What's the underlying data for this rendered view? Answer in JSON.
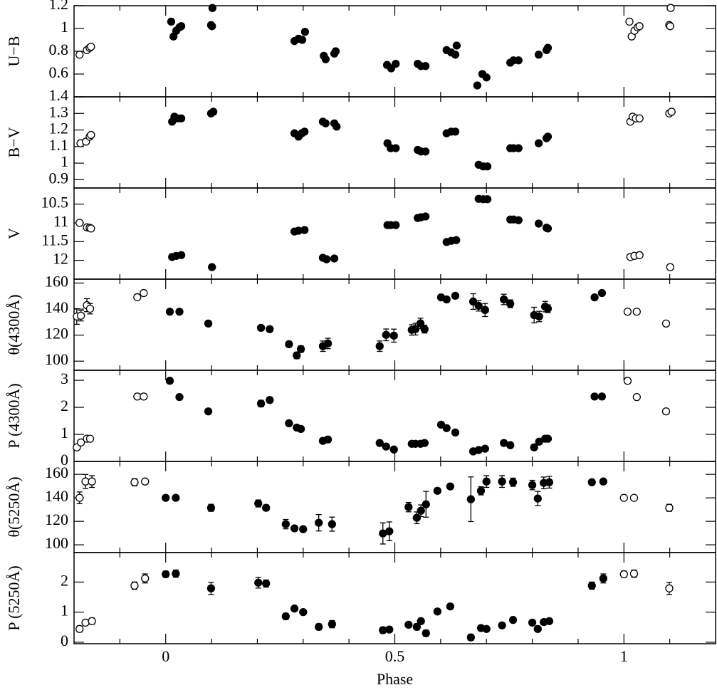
{
  "chart_data": [
    {
      "type": "scatter",
      "ylabel": "U−B",
      "xlim": [
        -0.2,
        1.2
      ],
      "xticks": [
        0,
        0.5,
        1
      ],
      "xminorticks": [
        -0.1,
        0.1,
        0.2,
        0.3,
        0.4,
        0.6,
        0.7,
        0.8,
        0.9,
        1.1
      ],
      "ylim": [
        0.4,
        1.2
      ],
      "yticks": [
        0.6,
        0.8,
        1,
        1.2
      ],
      "series": [
        {
          "marker": "filled",
          "x": [
            0.012,
            0.017,
            0.023,
            0.03,
            0.034,
            0.099,
            0.101,
            0.102,
            0.281,
            0.29,
            0.298,
            0.304,
            0.345,
            0.349,
            0.368,
            0.371,
            0.483,
            0.492,
            0.502,
            0.55,
            0.557,
            0.567,
            0.613,
            0.623,
            0.632,
            0.635,
            0.68,
            0.691,
            0.7,
            0.752,
            0.759,
            0.77,
            0.814,
            0.831,
            0.834
          ],
          "values": [
            1.06,
            0.93,
            0.98,
            1.01,
            1.02,
            1.03,
            1.02,
            1.18,
            0.89,
            0.91,
            0.9,
            0.97,
            0.76,
            0.73,
            0.78,
            0.8,
            0.68,
            0.65,
            0.69,
            0.69,
            0.67,
            0.67,
            0.81,
            0.79,
            0.77,
            0.85,
            0.5,
            0.6,
            0.57,
            0.7,
            0.72,
            0.72,
            0.77,
            0.81,
            0.83
          ]
        },
        {
          "marker": "open",
          "x": [
            -0.188,
            -0.172,
            -0.166,
            -0.163,
            1.012,
            1.017,
            1.023,
            1.03,
            1.034,
            1.099,
            1.101,
            1.102
          ],
          "values": [
            0.77,
            0.81,
            0.83,
            0.84,
            1.06,
            0.93,
            0.98,
            1.01,
            1.02,
            1.03,
            1.02,
            1.18
          ]
        }
      ]
    },
    {
      "type": "scatter",
      "ylabel": "B−V",
      "xlim": [
        -0.2,
        1.2
      ],
      "xticks": [
        0,
        0.5,
        1
      ],
      "xminorticks": [
        -0.1,
        0.1,
        0.2,
        0.3,
        0.4,
        0.6,
        0.7,
        0.8,
        0.9,
        1.1
      ],
      "ylim": [
        0.85,
        1.4
      ],
      "yticks": [
        0.9,
        1,
        1.1,
        1.2,
        1.3,
        1.4
      ],
      "series": [
        {
          "marker": "filled",
          "x": [
            0.014,
            0.019,
            0.026,
            0.034,
            0.099,
            0.104,
            0.281,
            0.29,
            0.297,
            0.303,
            0.343,
            0.349,
            0.368,
            0.373,
            0.484,
            0.491,
            0.502,
            0.55,
            0.557,
            0.567,
            0.613,
            0.623,
            0.632,
            0.683,
            0.693,
            0.702,
            0.752,
            0.759,
            0.77,
            0.814,
            0.831,
            0.834
          ],
          "values": [
            1.25,
            1.28,
            1.27,
            1.27,
            1.3,
            1.31,
            1.18,
            1.16,
            1.18,
            1.19,
            1.25,
            1.24,
            1.24,
            1.22,
            1.12,
            1.09,
            1.09,
            1.08,
            1.07,
            1.07,
            1.18,
            1.19,
            1.19,
            0.99,
            0.98,
            0.98,
            1.09,
            1.09,
            1.09,
            1.12,
            1.15,
            1.16
          ]
        },
        {
          "marker": "open",
          "x": [
            -0.186,
            -0.174,
            -0.166,
            -0.163,
            1.014,
            1.019,
            1.026,
            1.034,
            1.099,
            1.104
          ],
          "values": [
            1.12,
            1.13,
            1.16,
            1.17,
            1.25,
            1.28,
            1.27,
            1.27,
            1.3,
            1.31
          ]
        }
      ]
    },
    {
      "type": "scatter",
      "ylabel": "V",
      "xlim": [
        -0.2,
        1.2
      ],
      "xticks": [
        0,
        0.5,
        1
      ],
      "xminorticks": [
        -0.1,
        0.1,
        0.2,
        0.3,
        0.4,
        0.6,
        0.7,
        0.8,
        0.9,
        1.1
      ],
      "ylim": [
        12.5,
        10.07
      ],
      "yticks": [
        10.5,
        11,
        11.5,
        12
      ],
      "series": [
        {
          "marker": "filled",
          "x": [
            0.014,
            0.023,
            0.034,
            0.101,
            0.281,
            0.29,
            0.303,
            0.343,
            0.351,
            0.368,
            0.484,
            0.491,
            0.502,
            0.55,
            0.557,
            0.567,
            0.613,
            0.623,
            0.634,
            0.683,
            0.693,
            0.702,
            0.752,
            0.759,
            0.77,
            0.814,
            0.831,
            0.834
          ],
          "values": [
            11.91,
            11.88,
            11.86,
            12.18,
            11.23,
            11.21,
            11.19,
            11.93,
            11.97,
            11.95,
            11.06,
            11.06,
            11.06,
            10.87,
            10.85,
            10.83,
            11.51,
            11.48,
            11.46,
            10.36,
            10.37,
            10.37,
            10.91,
            10.91,
            10.93,
            11.02,
            11.13,
            11.15
          ]
        },
        {
          "marker": "open",
          "x": [
            -0.188,
            -0.172,
            -0.166,
            -0.163,
            1.014,
            1.023,
            1.034,
            1.101
          ],
          "values": [
            11.0,
            11.12,
            11.13,
            11.15,
            11.91,
            11.88,
            11.86,
            12.18
          ]
        }
      ]
    },
    {
      "type": "scatter",
      "ylabel": "θ(4300Å)",
      "xlim": [
        -0.2,
        1.2
      ],
      "xticks": [
        0,
        0.5,
        1
      ],
      "xminorticks": [
        -0.1,
        0.1,
        0.2,
        0.3,
        0.4,
        0.6,
        0.7,
        0.8,
        0.9,
        1.1
      ],
      "ylim": [
        93,
        163
      ],
      "yticks": [
        100,
        120,
        140,
        160
      ],
      "series": [
        {
          "marker": "filled",
          "x": [
            0.009,
            0.03,
            0.093,
            0.208,
            0.227,
            0.269,
            0.286,
            0.295,
            0.343,
            0.354,
            0.467,
            0.481,
            0.498,
            0.537,
            0.545,
            0.556,
            0.565,
            0.601,
            0.613,
            0.632,
            0.671,
            0.683,
            0.697,
            0.738,
            0.752,
            0.804,
            0.815,
            0.828,
            0.834,
            0.936,
            0.952
          ],
          "values": [
            138,
            138,
            128.9,
            125.6,
            124.6,
            113,
            104.4,
            109.3,
            111.5,
            113.6,
            111.5,
            120.2,
            119.6,
            124,
            124.6,
            129,
            124.6,
            149,
            147.4,
            150.2,
            145.8,
            142.5,
            139.3,
            147.4,
            144.1,
            135.4,
            134.3,
            141.9,
            140.3,
            149,
            152.3
          ],
          "errors": [
            1,
            1,
            2,
            2,
            1.5,
            2,
            2.5,
            2.5,
            4,
            4,
            4,
            4.5,
            5,
            4,
            4.5,
            4,
            3,
            2,
            2,
            2,
            6,
            4,
            5,
            4,
            3,
            6,
            4,
            4,
            3,
            1.5,
            1.5
          ]
        },
        {
          "marker": "open",
          "x": [
            -0.194,
            -0.185,
            -0.172,
            -0.165,
            -0.062,
            -0.048,
            1.008,
            1.028,
            1.092
          ],
          "values": [
            134.3,
            134.9,
            143,
            140.3,
            149.1,
            152.3,
            138,
            138,
            128.9
          ],
          "errors": [
            6,
            4,
            5,
            4,
            2,
            2,
            2,
            2,
            2
          ]
        }
      ]
    },
    {
      "type": "scatter",
      "ylabel": "P  (4300Å)",
      "xlim": [
        -0.2,
        1.2
      ],
      "xticks": [
        0,
        0.5,
        1
      ],
      "xminorticks": [
        -0.1,
        0.1,
        0.2,
        0.3,
        0.4,
        0.6,
        0.7,
        0.8,
        0.9,
        1.1
      ],
      "ylim": [
        0,
        3.37
      ],
      "yticks": [
        0,
        1,
        2,
        3
      ],
      "series": [
        {
          "marker": "filled",
          "x": [
            0.009,
            0.03,
            0.093,
            0.208,
            0.227,
            0.269,
            0.286,
            0.295,
            0.343,
            0.354,
            0.467,
            0.481,
            0.498,
            0.537,
            0.545,
            0.556,
            0.565,
            0.601,
            0.613,
            0.632,
            0.671,
            0.683,
            0.697,
            0.738,
            0.752,
            0.804,
            0.815,
            0.828,
            0.834,
            0.936,
            0.952
          ],
          "values": [
            2.98,
            2.38,
            1.85,
            2.14,
            2.27,
            1.41,
            1.25,
            1.2,
            0.76,
            0.81,
            0.68,
            0.55,
            0.44,
            0.65,
            0.65,
            0.65,
            0.68,
            1.36,
            1.23,
            1.07,
            0.37,
            0.42,
            0.47,
            0.68,
            0.6,
            0.52,
            0.73,
            0.84,
            0.84,
            2.4,
            2.4
          ],
          "errors": [
            0.1,
            0.1,
            0.1,
            0.12,
            0.1,
            0.07,
            0.07,
            0.05,
            0.1,
            0.1,
            0.1,
            0.08,
            0.07,
            0.06,
            0.06,
            0.06,
            0.06,
            0.08,
            0.08,
            0.08,
            0.05,
            0.05,
            0.06,
            0.06,
            0.06,
            0.07,
            0.06,
            0.07,
            0.07,
            0.1,
            0.1
          ]
        },
        {
          "marker": "open",
          "x": [
            -0.194,
            -0.185,
            -0.172,
            -0.165,
            -0.062,
            -0.048,
            1.008,
            1.028,
            1.092
          ],
          "values": [
            0.52,
            0.7,
            0.84,
            0.84,
            2.4,
            2.4,
            2.98,
            2.38,
            1.85
          ],
          "errors": [
            0.07,
            0.06,
            0.07,
            0.07,
            0.1,
            0.1,
            0.1,
            0.1,
            0.1
          ]
        }
      ]
    },
    {
      "type": "scatter",
      "ylabel": "θ(5250Å)",
      "xlim": [
        -0.2,
        1.2
      ],
      "xticks": [
        0,
        0.5,
        1
      ],
      "xminorticks": [
        -0.1,
        0.1,
        0.2,
        0.3,
        0.4,
        0.6,
        0.7,
        0.8,
        0.9,
        1.1
      ],
      "ylim": [
        93.4,
        171
      ],
      "yticks": [
        100,
        120,
        140,
        160
      ],
      "series": [
        {
          "marker": "filled",
          "x": [
            0,
            0.022,
            0.099,
            0.202,
            0.219,
            0.262,
            0.281,
            0.3,
            0.334,
            0.363,
            0.474,
            0.488,
            0.53,
            0.548,
            0.557,
            0.568,
            0.593,
            0.621,
            0.666,
            0.688,
            0.7,
            0.734,
            0.758,
            0.8,
            0.812,
            0.825,
            0.837,
            0.93,
            0.955
          ],
          "values": [
            140,
            140,
            131.5,
            135.2,
            131.5,
            117.6,
            114,
            113.3,
            118.8,
            117.6,
            109.7,
            111.5,
            132.1,
            123,
            129,
            134.5,
            146,
            149.7,
            138.8,
            146,
            153.9,
            153.9,
            153.3,
            150.9,
            139.4,
            152.7,
            153.3,
            153.3,
            153.9
          ],
          "errors": [
            1.5,
            1.5,
            3,
            3,
            2.5,
            4,
            2,
            2,
            7,
            6,
            9,
            8,
            4,
            5,
            5,
            11,
            2,
            1.5,
            19,
            3.5,
            5,
            5,
            3.5,
            4,
            6,
            5,
            5,
            2,
            1.5
          ]
        },
        {
          "marker": "open",
          "x": [
            -0.188,
            -0.175,
            -0.161,
            -0.068,
            -0.045,
            1,
            1.022,
            1.099
          ],
          "values": [
            140,
            153.9,
            153.9,
            153.3,
            153.9,
            140,
            140,
            131.5
          ],
          "errors": [
            5,
            6,
            5,
            3,
            2,
            1.5,
            1.5,
            3
          ]
        }
      ]
    },
    {
      "type": "scatter",
      "ylabel": "P  (5250Å)",
      "xlabel": "Phase",
      "xlim": [
        -0.2,
        1.2
      ],
      "xticks": [
        0,
        0.5,
        1
      ],
      "xminorticks": [
        -0.1,
        0.1,
        0.2,
        0.3,
        0.4,
        0.6,
        0.7,
        0.8,
        0.9,
        1.1
      ],
      "ylim": [
        -0.05,
        2.98
      ],
      "yticks": [
        0,
        1,
        2
      ],
      "series": [
        {
          "marker": "filled",
          "x": [
            0,
            0.022,
            0.099,
            0.202,
            0.219,
            0.262,
            0.281,
            0.3,
            0.334,
            0.363,
            0.474,
            0.488,
            0.53,
            0.548,
            0.557,
            0.568,
            0.593,
            0.621,
            0.666,
            0.688,
            0.7,
            0.734,
            0.758,
            0.8,
            0.812,
            0.825,
            0.837,
            0.93,
            0.955
          ],
          "values": [
            2.26,
            2.28,
            1.79,
            1.98,
            1.95,
            0.86,
            1.12,
            1.0,
            0.51,
            0.6,
            0.4,
            0.42,
            0.58,
            0.51,
            0.7,
            0.3,
            1.02,
            1.19,
            0.16,
            0.47,
            0.44,
            0.56,
            0.74,
            0.65,
            0.44,
            0.67,
            0.7,
            1.88,
            2.12
          ],
          "errors": [
            0.1,
            0.12,
            0.2,
            0.18,
            0.12,
            0.1,
            0.08,
            0.08,
            0.1,
            0.12,
            0.1,
            0.08,
            0.08,
            0.1,
            0.08,
            0.1,
            0.08,
            0.06,
            0.1,
            0.05,
            0.05,
            0.08,
            0.07,
            0.08,
            0.08,
            0.08,
            0.08,
            0.12,
            0.15
          ]
        },
        {
          "marker": "open",
          "x": [
            -0.188,
            -0.175,
            -0.161,
            -0.068,
            -0.045,
            1,
            1.022,
            1.099
          ],
          "values": [
            0.44,
            0.65,
            0.7,
            1.88,
            2.12,
            2.26,
            2.28,
            1.79
          ],
          "errors": [
            0.1,
            0.08,
            0.1,
            0.12,
            0.15,
            0.1,
            0.12,
            0.2
          ]
        }
      ]
    }
  ]
}
